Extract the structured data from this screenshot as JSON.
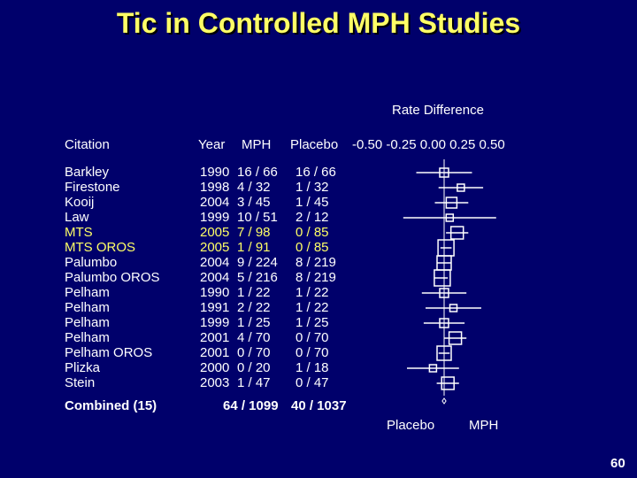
{
  "title": "Tic in Controlled MPH Studies",
  "rate_difference_label": "Rate Difference",
  "columns": {
    "citation": "Citation",
    "year": "Year",
    "mph": "MPH",
    "placebo": "Placebo"
  },
  "colors": {
    "background": "#00006b",
    "title": "#ffff66",
    "text": "#ffffff",
    "highlight": "#ffff66"
  },
  "footer": {
    "combined_label": "Combined (15)",
    "combined_mph": "64 / 1099",
    "combined_placebo": "40 / 1037",
    "favors_left": "Placebo",
    "favors_right": "MPH"
  },
  "page_number": "60",
  "chart_data": {
    "type": "forest",
    "x_ticks": [
      "-0.50",
      "-0.25",
      "0.00",
      "0.25",
      "0.50"
    ],
    "xlim": [
      -0.5,
      0.5
    ],
    "studies": [
      {
        "citation": "Barkley",
        "year": "1990",
        "mph": "16 / 66",
        "placebo": "16 / 66",
        "estimate": 0.0,
        "ci": [
          -0.15,
          0.15
        ],
        "weight": 4,
        "highlight": false
      },
      {
        "citation": "Firestone",
        "year": "1998",
        "mph": "4 / 32",
        "placebo": "1 / 32",
        "estimate": 0.09,
        "ci": [
          -0.03,
          0.21
        ],
        "weight": 3,
        "highlight": false
      },
      {
        "citation": "Kooij",
        "year": "2004",
        "mph": "3 / 45",
        "placebo": "1 / 45",
        "estimate": 0.04,
        "ci": [
          -0.05,
          0.13
        ],
        "weight": 5,
        "highlight": false
      },
      {
        "citation": "Law",
        "year": "1999",
        "mph": "10 / 51",
        "placebo": "2 / 12",
        "estimate": 0.03,
        "ci": [
          -0.22,
          0.28
        ],
        "weight": 3,
        "highlight": false
      },
      {
        "citation": "MTS",
        "year": "2005",
        "mph": "7 / 98",
        "placebo": "0 / 85",
        "estimate": 0.07,
        "ci": [
          0.01,
          0.13
        ],
        "weight": 6,
        "highlight": true
      },
      {
        "citation": "MTS OROS",
        "year": "2005",
        "mph": "1 / 91",
        "placebo": "0 / 85",
        "estimate": 0.01,
        "ci": [
          -0.02,
          0.04
        ],
        "weight": 8,
        "highlight": true
      },
      {
        "citation": "Palumbo",
        "year": "2004",
        "mph": "9 / 224",
        "placebo": "8 / 219",
        "estimate": 0.0,
        "ci": [
          -0.04,
          0.04
        ],
        "weight": 7,
        "highlight": false
      },
      {
        "citation": "Palumbo OROS",
        "year": "2004",
        "mph": "5 / 216",
        "placebo": "8 / 219",
        "estimate": -0.01,
        "ci": [
          -0.05,
          0.02
        ],
        "weight": 8,
        "highlight": false
      },
      {
        "citation": "Pelham",
        "year": "1990",
        "mph": "1 / 22",
        "placebo": "1 / 22",
        "estimate": 0.0,
        "ci": [
          -0.12,
          0.12
        ],
        "weight": 4,
        "highlight": false
      },
      {
        "citation": "Pelham",
        "year": "1991",
        "mph": "2 / 22",
        "placebo": "1 / 22",
        "estimate": 0.05,
        "ci": [
          -0.1,
          0.2
        ],
        "weight": 3,
        "highlight": false
      },
      {
        "citation": "Pelham",
        "year": "1999",
        "mph": "1 / 25",
        "placebo": "1 / 25",
        "estimate": 0.0,
        "ci": [
          -0.11,
          0.11
        ],
        "weight": 4,
        "highlight": false
      },
      {
        "citation": "Pelham",
        "year": "2001",
        "mph": "4 / 70",
        "placebo": "0 / 70",
        "estimate": 0.06,
        "ci": [
          0.0,
          0.12
        ],
        "weight": 6,
        "highlight": false
      },
      {
        "citation": "Pelham OROS",
        "year": "2001",
        "mph": "0 / 70",
        "placebo": "0 / 70",
        "estimate": 0.0,
        "ci": [
          -0.03,
          0.03
        ],
        "weight": 7,
        "highlight": false
      },
      {
        "citation": "Plizka",
        "year": "2000",
        "mph": "0 / 20",
        "placebo": "1 / 18",
        "estimate": -0.06,
        "ci": [
          -0.2,
          0.08
        ],
        "weight": 3,
        "highlight": false
      },
      {
        "citation": "Stein",
        "year": "2003",
        "mph": "1 / 47",
        "placebo": "0 / 47",
        "estimate": 0.02,
        "ci": [
          -0.04,
          0.08
        ],
        "weight": 6,
        "highlight": false
      }
    ],
    "combined": {
      "estimate": 0.0,
      "ci": [
        -0.01,
        0.01
      ]
    }
  }
}
